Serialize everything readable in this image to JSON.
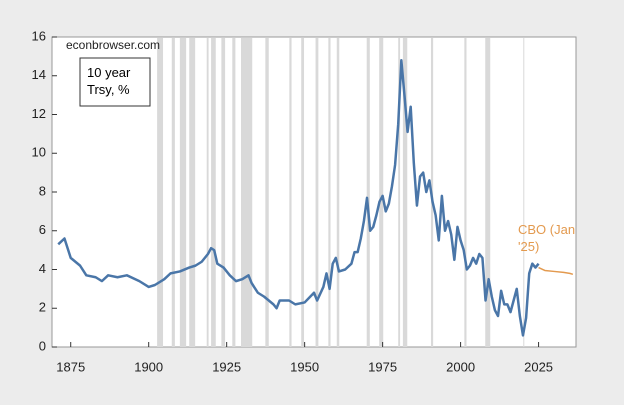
{
  "chart_data": {
    "type": "line",
    "source": "econbrowser.com",
    "xlim": [
      1869,
      2037
    ],
    "xticks": [
      1875,
      1900,
      1925,
      1950,
      1975,
      2000,
      2025
    ],
    "ylim": [
      0,
      16
    ],
    "yticks": [
      0,
      2,
      4,
      6,
      8,
      10,
      12,
      14,
      16
    ],
    "recession_color": "#d9d9d9",
    "recessions": [
      [
        1902.7,
        1904.6
      ],
      [
        1907.4,
        1908.4
      ],
      [
        1910.0,
        1912.0
      ],
      [
        1913.0,
        1914.9
      ],
      [
        1918.6,
        1919.2
      ],
      [
        1920.0,
        1921.5
      ],
      [
        1923.3,
        1924.5
      ],
      [
        1926.8,
        1927.8
      ],
      [
        1929.6,
        1933.2
      ],
      [
        1937.4,
        1938.5
      ],
      [
        1945.1,
        1945.8
      ],
      [
        1948.9,
        1949.8
      ],
      [
        1953.5,
        1954.4
      ],
      [
        1957.6,
        1958.3
      ],
      [
        1960.3,
        1961.1
      ],
      [
        1969.9,
        1970.9
      ],
      [
        1973.9,
        1975.2
      ],
      [
        1980.0,
        1980.6
      ],
      [
        1981.5,
        1982.9
      ],
      [
        1990.5,
        1991.2
      ],
      [
        2001.2,
        2001.9
      ],
      [
        2007.9,
        2009.5
      ],
      [
        2020.1,
        2020.4
      ]
    ],
    "series": [
      {
        "name": "10 year Trsy, %",
        "color": "#4a76a8",
        "x": [
          1871,
          1873,
          1875,
          1878,
          1880,
          1883,
          1885,
          1887,
          1890,
          1893,
          1897,
          1900,
          1902,
          1905,
          1907,
          1910,
          1913,
          1915,
          1917,
          1919,
          1920,
          1921,
          1922,
          1924,
          1926,
          1928,
          1930,
          1932,
          1933,
          1935,
          1937,
          1940,
          1941,
          1942,
          1945,
          1947,
          1950,
          1953,
          1954,
          1956,
          1957,
          1958,
          1959,
          1960,
          1961,
          1963,
          1965,
          1966,
          1967,
          1968,
          1969,
          1970,
          1971,
          1972,
          1973,
          1974,
          1975,
          1976,
          1977,
          1978,
          1979,
          1980,
          1981,
          1982,
          1983,
          1984,
          1985,
          1986,
          1987,
          1988,
          1989,
          1990,
          1991,
          1992,
          1993,
          1994,
          1995,
          1996,
          1997,
          1998,
          1999,
          2000,
          2001,
          2002,
          2003,
          2004,
          2005,
          2006,
          2007,
          2008,
          2009,
          2010,
          2011,
          2012,
          2013,
          2014,
          2015,
          2016,
          2017,
          2018,
          2019,
          2020,
          2021,
          2022,
          2023,
          2024,
          2025
        ],
        "values": [
          5.3,
          5.6,
          4.6,
          4.2,
          3.7,
          3.6,
          3.4,
          3.7,
          3.6,
          3.7,
          3.4,
          3.1,
          3.2,
          3.5,
          3.8,
          3.9,
          4.1,
          4.2,
          4.4,
          4.8,
          5.1,
          5.0,
          4.3,
          4.1,
          3.7,
          3.4,
          3.5,
          3.7,
          3.3,
          2.8,
          2.6,
          2.2,
          2.0,
          2.4,
          2.4,
          2.2,
          2.3,
          2.8,
          2.4,
          3.1,
          3.8,
          3.0,
          4.3,
          4.6,
          3.9,
          4.0,
          4.3,
          4.9,
          4.9,
          5.6,
          6.5,
          7.7,
          6.0,
          6.2,
          6.8,
          7.5,
          7.8,
          7.0,
          7.4,
          8.3,
          9.4,
          11.5,
          14.8,
          13.0,
          11.1,
          12.4,
          9.5,
          7.3,
          8.8,
          9.0,
          8.0,
          8.6,
          7.5,
          6.8,
          5.5,
          7.8,
          6.0,
          6.5,
          5.8,
          4.5,
          6.2,
          5.5,
          5.0,
          4.0,
          4.2,
          4.6,
          4.3,
          4.8,
          4.6,
          2.4,
          3.5,
          2.6,
          1.9,
          1.6,
          2.9,
          2.2,
          2.2,
          1.8,
          2.4,
          3.0,
          1.6,
          0.6,
          1.5,
          3.8,
          4.3,
          4.1,
          4.3
        ]
      },
      {
        "name": "CBO (Jan '25)",
        "color": "#e39a4f",
        "x": [
          2025,
          2027,
          2030,
          2033,
          2035,
          2036
        ],
        "values": [
          4.1,
          3.95,
          3.9,
          3.85,
          3.8,
          3.75
        ]
      }
    ]
  }
}
